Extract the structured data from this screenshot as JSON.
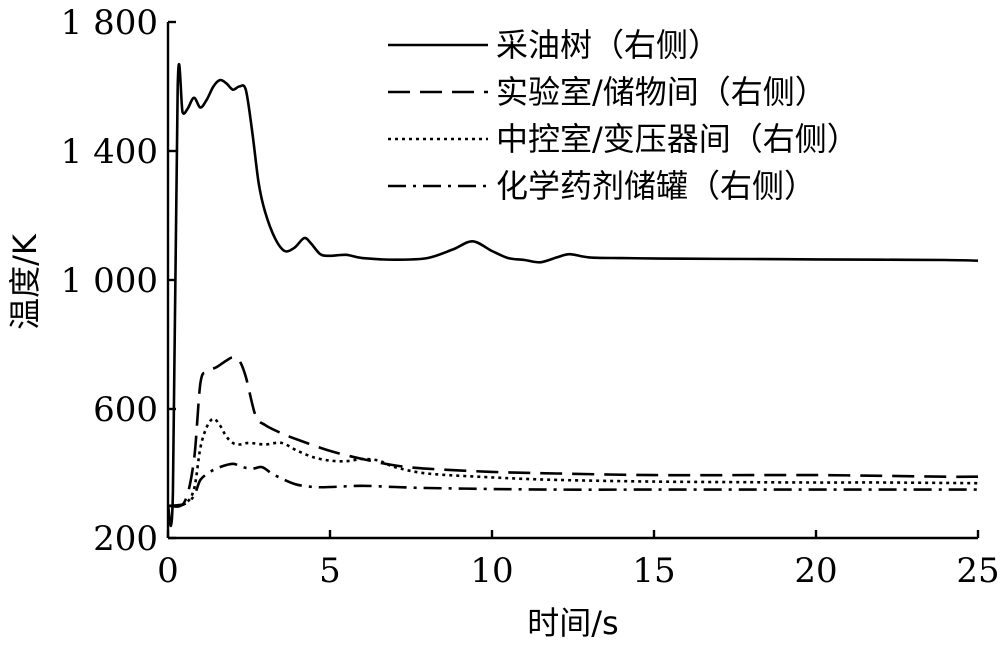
{
  "chart_data": {
    "type": "line",
    "xlabel": "时间/s",
    "ylabel": "温度/K",
    "xlim": [
      0,
      25
    ],
    "ylim": [
      200,
      1800
    ],
    "xticks": [
      0,
      5,
      10,
      15,
      20,
      25
    ],
    "xtick_labels": [
      "0",
      "5",
      "10",
      "15",
      "20",
      "25"
    ],
    "yticks": [
      200,
      600,
      1000,
      1400,
      1800
    ],
    "ytick_labels": [
      "200",
      "600",
      "1 000",
      "1 400",
      "1 800"
    ],
    "grid": false,
    "legend_position": "top-right",
    "series": [
      {
        "name": "采油树（右侧）",
        "style": "solid",
        "x": [
          0,
          0.15,
          0.3,
          0.45,
          0.6,
          0.8,
          1.0,
          1.2,
          1.4,
          1.6,
          1.8,
          2.0,
          2.2,
          2.4,
          2.6,
          2.8,
          3.0,
          3.3,
          3.6,
          3.9,
          4.2,
          4.4,
          4.7,
          5.0,
          5.5,
          6.0,
          7.0,
          8.0,
          8.8,
          9.4,
          10.0,
          10.5,
          11.0,
          11.5,
          12.0,
          12.4,
          13.0,
          14.0,
          16.0,
          18.0,
          20.0,
          22.0,
          24.0,
          25.0
        ],
        "y": [
          300,
          340,
          1600,
          1520,
          1530,
          1565,
          1535,
          1560,
          1600,
          1620,
          1610,
          1590,
          1600,
          1590,
          1460,
          1300,
          1210,
          1130,
          1090,
          1100,
          1130,
          1115,
          1080,
          1075,
          1078,
          1068,
          1063,
          1068,
          1095,
          1120,
          1090,
          1068,
          1062,
          1055,
          1070,
          1080,
          1070,
          1068,
          1066,
          1065,
          1064,
          1063,
          1062,
          1060
        ]
      },
      {
        "name": "实验室/储物间（右侧）",
        "style": "dashed",
        "x": [
          0,
          0.5,
          0.8,
          1.0,
          1.2,
          1.5,
          1.8,
          2.0,
          2.2,
          2.4,
          2.7,
          3.0,
          3.5,
          4.0,
          5.0,
          6.0,
          7.0,
          8.0,
          10.0,
          12.0,
          15.0,
          18.0,
          20.0,
          22.0,
          24.0,
          25.0
        ],
        "y": [
          300,
          310,
          440,
          680,
          715,
          730,
          750,
          760,
          750,
          700,
          580,
          550,
          525,
          505,
          470,
          445,
          425,
          415,
          405,
          400,
          395,
          395,
          395,
          393,
          390,
          390
        ]
      },
      {
        "name": "中控室/变压器间（右侧）",
        "style": "dotted",
        "x": [
          0,
          0.5,
          0.8,
          1.0,
          1.2,
          1.4,
          1.6,
          1.8,
          2.0,
          2.2,
          2.5,
          3.0,
          3.5,
          4.0,
          4.5,
          5.0,
          5.5,
          6.0,
          6.5,
          7.0,
          8.0,
          10.0,
          12.0,
          15.0,
          18.0,
          20.0,
          22.0,
          25.0
        ],
        "y": [
          300,
          305,
          350,
          480,
          545,
          570,
          550,
          515,
          495,
          490,
          495,
          490,
          495,
          470,
          450,
          440,
          438,
          445,
          440,
          420,
          400,
          388,
          380,
          375,
          373,
          372,
          372,
          370
        ]
      },
      {
        "name": "化学药剂储罐（右侧）",
        "style": "dashdot",
        "x": [
          0,
          0.5,
          0.8,
          1.0,
          1.3,
          1.6,
          2.0,
          2.3,
          2.6,
          2.9,
          3.2,
          3.6,
          4.0,
          4.5,
          5.0,
          6.0,
          7.0,
          8.0,
          10.0,
          12.0,
          15.0,
          18.0,
          20.0,
          22.0,
          25.0
        ],
        "y": [
          300,
          305,
          330,
          380,
          405,
          420,
          430,
          420,
          415,
          420,
          400,
          380,
          365,
          358,
          358,
          362,
          358,
          355,
          352,
          350,
          350,
          350,
          350,
          350,
          350
        ]
      }
    ]
  }
}
